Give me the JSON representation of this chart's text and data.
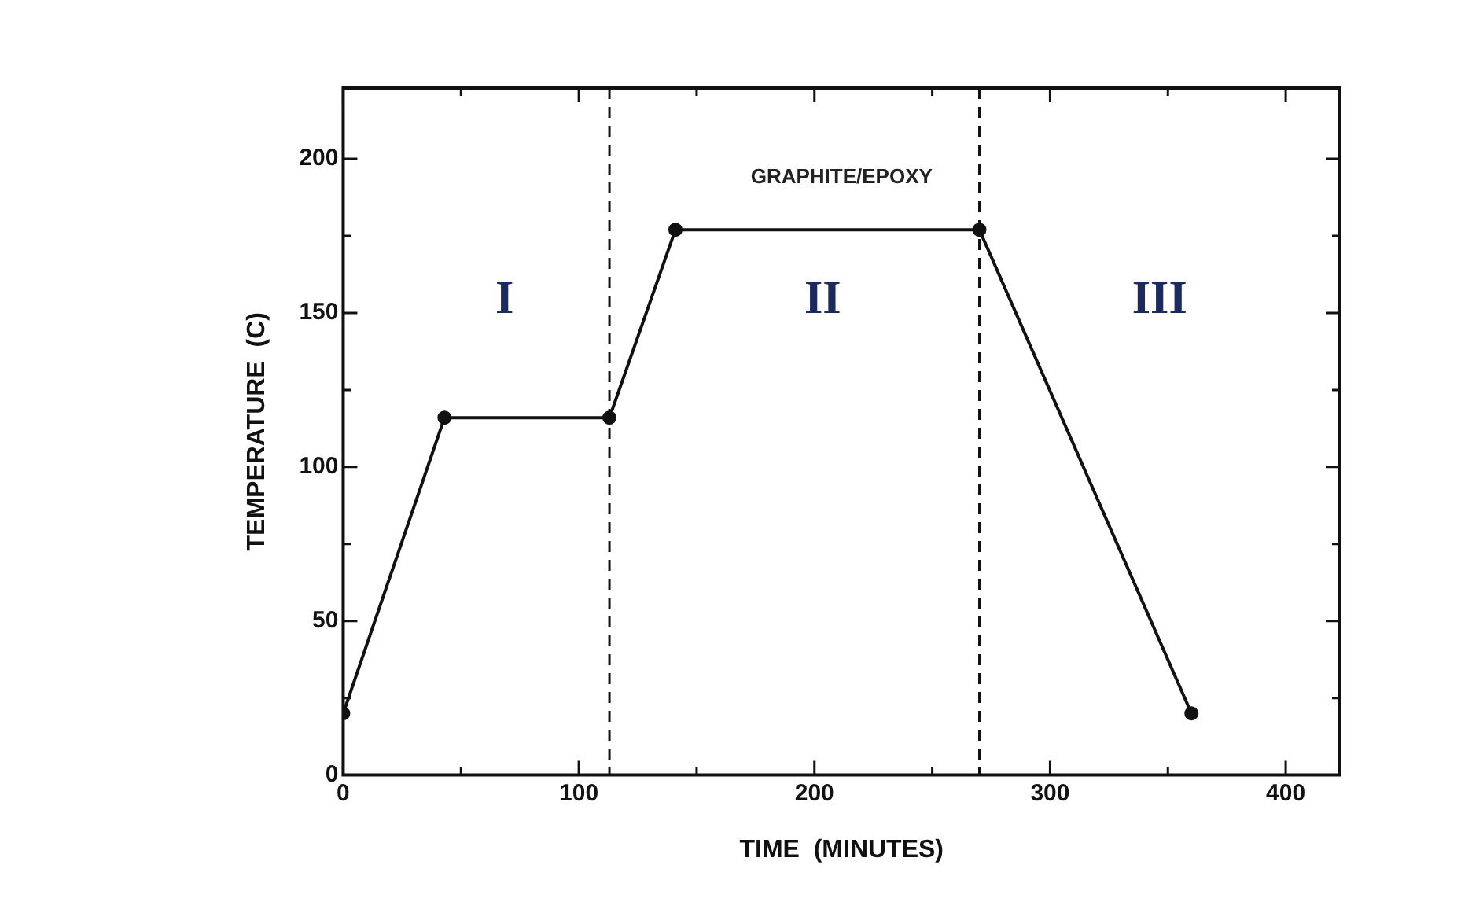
{
  "chart_data": {
    "type": "line",
    "xlabel": "TIME  (MINUTES)",
    "ylabel": "TEMPERATURE  (C)",
    "x": [
      0,
      43,
      113,
      141,
      270,
      360
    ],
    "series": [
      {
        "color": "#111111",
        "values": [
          20,
          116,
          116,
          177,
          177,
          20
        ]
      }
    ],
    "xlim": [
      0,
      423
    ],
    "ylim": [
      0,
      223
    ],
    "xticks": [
      0,
      {
        "value": 50,
        "label": null
      },
      100,
      {
        "value": 150,
        "label": null
      },
      200,
      {
        "value": 250,
        "label": null
      },
      300,
      {
        "value": 350,
        "label": null
      },
      400
    ],
    "yticks": [
      0,
      {
        "value": 25,
        "label": null
      },
      50,
      {
        "value": 75,
        "label": null
      },
      100,
      {
        "value": 125,
        "label": null
      },
      150,
      {
        "value": 175,
        "label": null
      },
      200
    ],
    "ref_lines": [
      {
        "axis": "x",
        "value": 113,
        "color": "#111111",
        "line_style": "dashed"
      },
      {
        "axis": "x",
        "value": 270,
        "color": "#111111",
        "line_style": "dashed"
      }
    ],
    "annotations": [
      "GRAPHITE/EPOXY",
      "I",
      "II",
      "III"
    ],
    "marker": "circle",
    "line_style": "solid",
    "grid": false,
    "legend": false
  }
}
